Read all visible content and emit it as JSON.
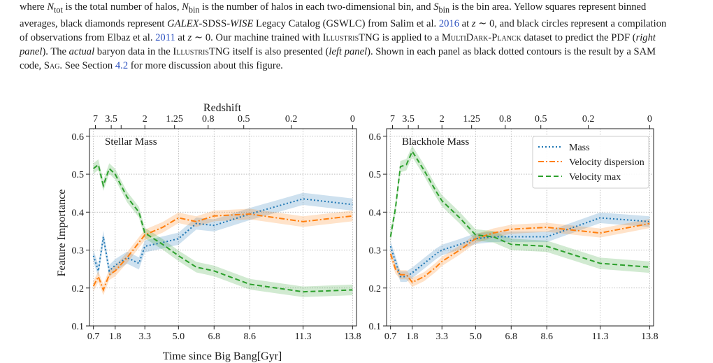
{
  "caption": {
    "line1": {
      "a": "where ",
      "ntot_var": "N",
      "ntot_sub": "tot",
      "b": " is the total number of halos, ",
      "nbin_var": "N",
      "nbin_sub": "bin",
      "c": " is the number of halos in each two-dimensional bin, and ",
      "sbin_var": "S",
      "sbin_sub": "bin",
      "d": " is the bin area. Yellow squares represent binned"
    },
    "line2": {
      "a": "averages, black diamonds represent ",
      "galex": "GALEX",
      "b": "-SDSS-",
      "wise": "WISE",
      "c": " Legacy Catalog (GSWLC) from Salim et al. ",
      "cite1": "2016",
      "d": " at ",
      "z": "z",
      "e": " ∼ 0, and black circles represent a compilation"
    },
    "line3": {
      "a": "of observations from Elbaz et al. ",
      "cite2": "2011",
      "b": " at ",
      "z": "z",
      "c": " ∼ 0. Our machine trained with ",
      "illustris": "IllustrisTNG",
      "d": " is applied to a ",
      "multidark": "MultiDark-Planck",
      "e": " dataset to predict the PDF (",
      "right": "right"
    },
    "line4": {
      "panel": "panel",
      "a": "). The ",
      "actual": "actual",
      "b": " baryon data in the ",
      "illustris": "IllustrisTNG",
      "c": " itself is also presented (",
      "left": "left panel",
      "d": "). Shown in each panel as black dotted contours is the result by a SAM"
    },
    "line5": {
      "a": "code, ",
      "sag": "Sag",
      "b": ". See Section ",
      "sect": "4.2",
      "c": " for more discussion about this figure."
    }
  },
  "figure": {
    "ylabel": "Feature Importance",
    "xlabel": "Time since Big Bang[Gyr]",
    "top_xlabel": "Redshift"
  },
  "chart_data": [
    {
      "type": "line",
      "panel_label": "Stellar Mass",
      "xlim": [
        0.5,
        14.0
      ],
      "ylim": [
        0.1,
        0.62
      ],
      "xticks": [
        0.7,
        1.8,
        3.3,
        5.0,
        6.8,
        8.6,
        11.3,
        13.8
      ],
      "xtick_labels": [
        "0.7",
        "1.8",
        "3.3",
        "5.0",
        "6.8",
        "8.6",
        "11.3",
        "13.8"
      ],
      "yticks": [
        0.1,
        0.2,
        0.3,
        0.4,
        0.5,
        0.6
      ],
      "ytick_labels": [
        "0.1",
        "0.2",
        "0.3",
        "0.4",
        "0.5",
        "0.6"
      ],
      "redshift_ticks": [
        0.8,
        1.6,
        2.1,
        3.3,
        4.8,
        6.5,
        8.3,
        10.7,
        13.8
      ],
      "redshift_labels": [
        "7",
        "3.5",
        "2",
        "1.25",
        "0.8",
        "0.5",
        "0.2",
        "0"
      ],
      "redshift_label_positions": [
        0.8,
        1.6,
        3.3,
        4.8,
        6.5,
        8.3,
        10.7,
        13.8
      ],
      "grid": true,
      "x": [
        0.7,
        0.95,
        1.2,
        1.5,
        1.8,
        2.4,
        3.0,
        3.3,
        4.2,
        5.0,
        5.9,
        6.8,
        8.6,
        11.3,
        13.8
      ],
      "series": [
        {
          "name": "Mass",
          "color": "#1f77b4",
          "style": "dotted",
          "values": [
            0.285,
            0.245,
            0.335,
            0.245,
            0.26,
            0.28,
            0.265,
            0.31,
            0.32,
            0.33,
            0.37,
            0.365,
            0.395,
            0.435,
            0.42
          ],
          "band": 0.016
        },
        {
          "name": "Velocity dispersion",
          "color": "#ff7f0e",
          "style": "dashdot",
          "values": [
            0.205,
            0.23,
            0.195,
            0.235,
            0.245,
            0.28,
            0.32,
            0.34,
            0.36,
            0.385,
            0.375,
            0.39,
            0.395,
            0.375,
            0.39
          ],
          "band": 0.014
        },
        {
          "name": "Velocity max",
          "color": "#2ca02c",
          "style": "dashed",
          "values": [
            0.515,
            0.525,
            0.47,
            0.515,
            0.5,
            0.44,
            0.4,
            0.345,
            0.315,
            0.285,
            0.255,
            0.245,
            0.21,
            0.19,
            0.195
          ],
          "band": 0.014
        }
      ]
    },
    {
      "type": "line",
      "panel_label": "Blackhole Mass",
      "xlim": [
        0.5,
        14.0
      ],
      "ylim": [
        0.1,
        0.62
      ],
      "xticks": [
        0.7,
        1.8,
        3.3,
        5.0,
        6.8,
        8.6,
        11.3,
        13.8
      ],
      "xtick_labels": [
        "0.7",
        "1.8",
        "3.3",
        "5.0",
        "6.8",
        "8.6",
        "11.3",
        "13.8"
      ],
      "yticks": [
        0.1,
        0.2,
        0.3,
        0.4,
        0.5,
        0.6
      ],
      "ytick_labels": [
        "0.1",
        "0.2",
        "0.3",
        "0.4",
        "0.5",
        "0.6"
      ],
      "redshift_ticks": [
        0.8,
        1.6,
        2.1,
        3.3,
        4.8,
        6.5,
        8.3,
        10.7,
        13.8
      ],
      "redshift_labels": [
        "7",
        "3.5",
        "2",
        "1.25",
        "0.8",
        "0.5",
        "0.2",
        "0"
      ],
      "redshift_label_positions": [
        0.8,
        1.6,
        3.3,
        4.8,
        6.5,
        8.3,
        10.7,
        13.8
      ],
      "grid": true,
      "legend": {
        "placement": "upper-right",
        "entries": [
          "Mass",
          "Velocity dispersion",
          "Velocity max"
        ]
      },
      "x": [
        0.7,
        0.95,
        1.2,
        1.5,
        1.8,
        2.4,
        3.0,
        3.3,
        4.2,
        5.0,
        5.9,
        6.8,
        8.6,
        11.3,
        13.8
      ],
      "series": [
        {
          "name": "Mass",
          "color": "#1f77b4",
          "style": "dotted",
          "values": [
            0.31,
            0.27,
            0.23,
            0.23,
            0.24,
            0.265,
            0.29,
            0.3,
            0.315,
            0.33,
            0.335,
            0.335,
            0.335,
            0.385,
            0.375
          ],
          "band": 0.014
        },
        {
          "name": "Velocity dispersion",
          "color": "#ff7f0e",
          "style": "dashdot",
          "values": [
            0.29,
            0.25,
            0.235,
            0.235,
            0.215,
            0.23,
            0.255,
            0.27,
            0.3,
            0.33,
            0.345,
            0.355,
            0.36,
            0.345,
            0.37
          ],
          "band": 0.012
        },
        {
          "name": "Velocity max",
          "color": "#2ca02c",
          "style": "dashed",
          "values": [
            0.335,
            0.41,
            0.52,
            0.525,
            0.56,
            0.51,
            0.455,
            0.43,
            0.385,
            0.34,
            0.335,
            0.315,
            0.31,
            0.265,
            0.255
          ],
          "band": 0.015
        }
      ]
    }
  ]
}
